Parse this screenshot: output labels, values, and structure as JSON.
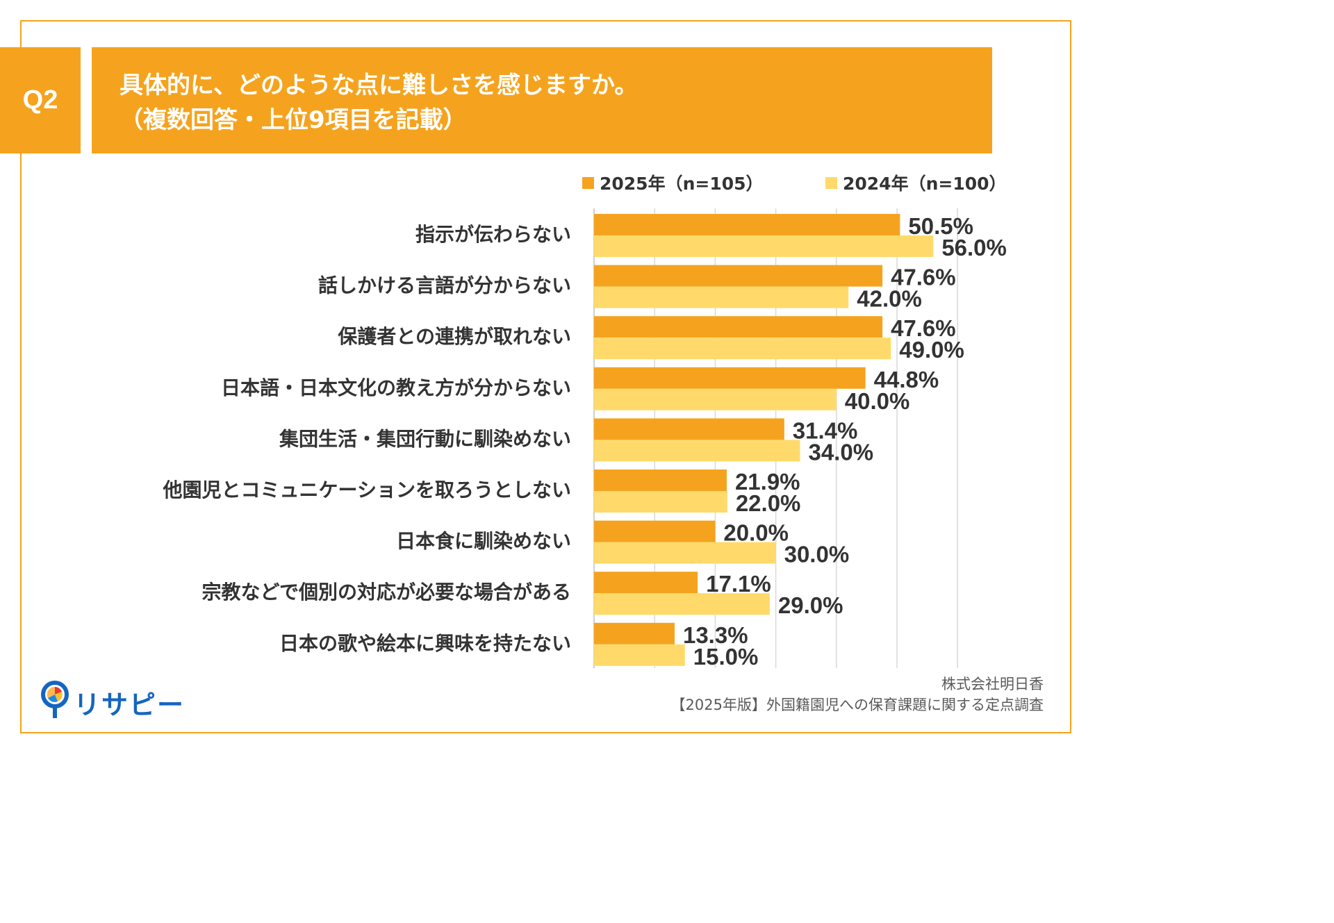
{
  "header": {
    "question_badge": "Q2",
    "title_line1": "具体的に、どのような点に難しさを感じますか。",
    "title_line2": "（複数回答・上位9項目を記載）"
  },
  "chart_data": {
    "type": "bar",
    "orientation": "horizontal",
    "categories": [
      "指示が伝わらない",
      "話しかける言語が分からない",
      "保護者との連携が取れない",
      "日本語・日本文化の教え方が分からない",
      "集団生活・集団行動に馴染めない",
      "他園児とコミュニケーションを取ろうとしない",
      "日本食に馴染めない",
      "宗教などで個別の対応が必要な場合がある",
      "日本の歌や絵本に興味を持たない"
    ],
    "series": [
      {
        "name": "2025年（n=105）",
        "color": "#F5A31E",
        "values": [
          50.5,
          47.6,
          47.6,
          44.8,
          31.4,
          21.9,
          20.0,
          17.1,
          13.3
        ],
        "labels": [
          "50.5%",
          "47.6%",
          "47.6%",
          "44.8%",
          "31.4%",
          "21.9%",
          "20.0%",
          "17.1%",
          "13.3%"
        ]
      },
      {
        "name": "2024年（n=100）",
        "color": "#FFDA6B",
        "values": [
          56.0,
          42.0,
          49.0,
          40.0,
          34.0,
          22.0,
          30.0,
          29.0,
          15.0
        ],
        "labels": [
          "56.0%",
          "42.0%",
          "49.0%",
          "40.0%",
          "34.0%",
          "22.0%",
          "30.0%",
          "29.0%",
          "15.0%"
        ]
      }
    ],
    "xlim": [
      0,
      60
    ],
    "gridlines": true,
    "legend_position": "top-right",
    "unit": "%"
  },
  "footer": {
    "logo_text": "リサピー",
    "source_company": "株式会社明日香",
    "source_survey": "【2025年版】外国籍園児への保育課題に関する定点調査"
  },
  "colors": {
    "accent": "#F5A31E",
    "series_2024": "#FFDA6B",
    "text": "#333333",
    "logo_blue": "#1565C0"
  }
}
